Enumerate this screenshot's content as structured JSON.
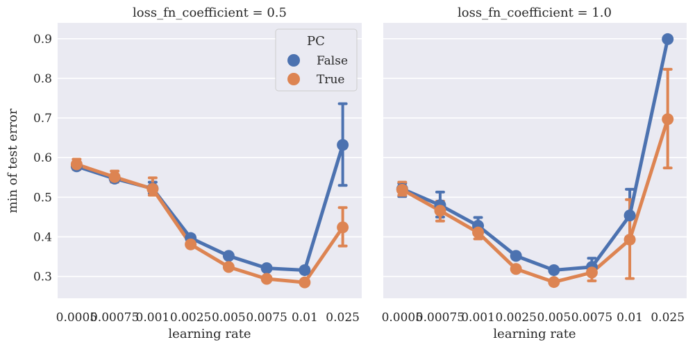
{
  "chart_data": {
    "type": "line",
    "ylabel": "min of test error",
    "xlabel": "learning rate",
    "categories": [
      "0.0005",
      "0.00075",
      "0.001",
      "0.0025",
      "0.005",
      "0.0075",
      "0.01",
      "0.025"
    ],
    "ylim": [
      0.245,
      0.94
    ],
    "yticks": [
      0.3,
      0.4,
      0.5,
      0.6,
      0.7,
      0.8,
      0.9
    ],
    "grid": true,
    "legend": {
      "title": "PC",
      "placement": "top-right",
      "entries": [
        "False",
        "True"
      ]
    },
    "colors": {
      "False": "#4c72b0",
      "True": "#dd8452"
    },
    "panels": [
      {
        "title": "loss_fn_coefficient = 0.5",
        "series": [
          {
            "name": "False",
            "values": [
              0.578,
              0.547,
              0.522,
              0.397,
              0.352,
              0.321,
              0.316,
              0.632
            ],
            "err_low": [
              0.572,
              0.54,
              0.51,
              0.39,
              0.346,
              0.316,
              0.31,
              0.53
            ],
            "err_high": [
              0.585,
              0.555,
              0.538,
              0.404,
              0.358,
              0.326,
              0.322,
              0.736
            ]
          },
          {
            "name": "True",
            "values": [
              0.583,
              0.551,
              0.521,
              0.381,
              0.324,
              0.294,
              0.285,
              0.424
            ],
            "err_low": [
              0.57,
              0.538,
              0.505,
              0.375,
              0.318,
              0.288,
              0.279,
              0.377
            ],
            "err_high": [
              0.596,
              0.566,
              0.549,
              0.388,
              0.33,
              0.3,
              0.291,
              0.474
            ]
          }
        ]
      },
      {
        "title": "loss_fn_coefficient = 1.0",
        "series": [
          {
            "name": "False",
            "values": [
              0.521,
              0.48,
              0.428,
              0.352,
              0.316,
              0.324,
              0.454,
              0.899
            ],
            "err_low": [
              0.502,
              0.45,
              0.41,
              0.345,
              0.31,
              0.318,
              0.4,
              0.893
            ],
            "err_high": [
              0.535,
              0.513,
              0.449,
              0.359,
              0.322,
              0.346,
              0.52,
              0.905
            ]
          },
          {
            "name": "True",
            "values": [
              0.519,
              0.466,
              0.411,
              0.319,
              0.286,
              0.31,
              0.393,
              0.697
            ],
            "err_low": [
              0.505,
              0.44,
              0.395,
              0.313,
              0.28,
              0.289,
              0.295,
              0.574
            ],
            "err_high": [
              0.538,
              0.49,
              0.432,
              0.325,
              0.292,
              0.33,
              0.494,
              0.823
            ]
          }
        ]
      }
    ]
  }
}
